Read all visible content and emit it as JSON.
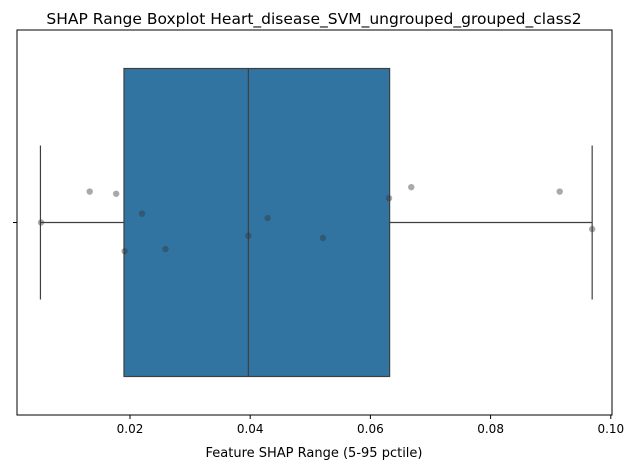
{
  "chart_data": {
    "type": "box",
    "title": "SHAP Range Boxplot Heart_disease_SVM_ungrouped_grouped_class2",
    "xlabel": "Feature SHAP Range (5-95 pctile)",
    "ylabel": "",
    "xlim": [
      0.0012,
      0.1002
    ],
    "xticks": [
      0.02,
      0.04,
      0.06,
      0.08,
      0.1
    ],
    "xtick_labels": [
      "0.02",
      "0.04",
      "0.06",
      "0.08",
      "0.10"
    ],
    "yticks": [
      ""
    ],
    "grid": false,
    "box": {
      "whisker_low": 0.0051,
      "q1": 0.019,
      "median": 0.0397,
      "q3": 0.0632,
      "whisker_high": 0.0969,
      "color": "#3274a1",
      "edge_color": "#3f3f3f"
    },
    "points": [
      {
        "x": 0.0052,
        "y": 0.0
      },
      {
        "x": 0.0133,
        "y": -0.14
      },
      {
        "x": 0.0177,
        "y": -0.13
      },
      {
        "x": 0.0191,
        "y": 0.13
      },
      {
        "x": 0.022,
        "y": -0.04
      },
      {
        "x": 0.0259,
        "y": 0.12
      },
      {
        "x": 0.0397,
        "y": 0.06
      },
      {
        "x": 0.0429,
        "y": -0.02
      },
      {
        "x": 0.0521,
        "y": 0.07
      },
      {
        "x": 0.0631,
        "y": -0.11
      },
      {
        "x": 0.0668,
        "y": -0.16
      },
      {
        "x": 0.0915,
        "y": -0.14
      },
      {
        "x": 0.0969,
        "y": 0.03
      }
    ],
    "point_color": "#333333"
  }
}
